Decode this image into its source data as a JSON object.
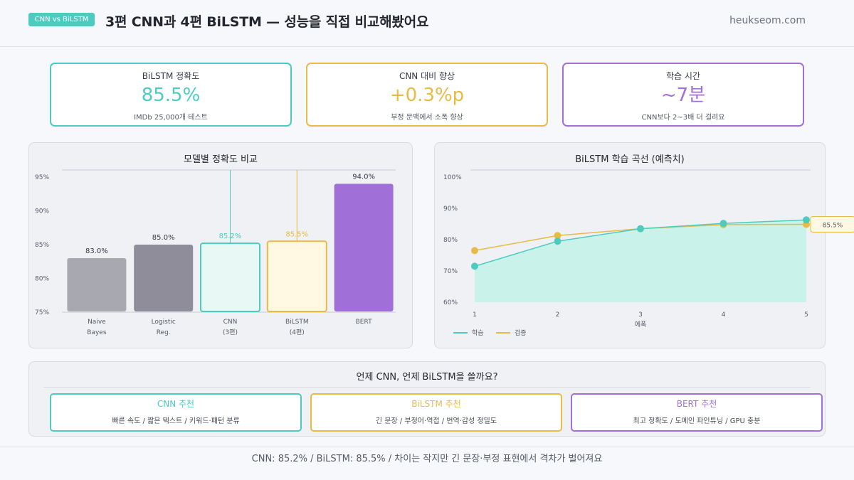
{
  "header": {
    "badge": "CNN vs BiLSTM",
    "title": "3편 CNN과 4편 BiLSTM — 성능을 직접 비교해봤어요",
    "site": "heukseom.com"
  },
  "kpis": [
    {
      "label": "BiLSTM 정확도",
      "value": "85.5%",
      "sub": "IMDb 25,000개 테스트"
    },
    {
      "label": "CNN 대비 향상",
      "value": "+0.3%p",
      "sub": "부정 문맥에서 소폭 향상"
    },
    {
      "label": "학습 시간",
      "value": "~7분",
      "sub": "CNN보다 2~3배 더 걸려요"
    }
  ],
  "colors": {
    "teal": "#4dcbbf",
    "gold": "#e6bb46",
    "purple": "#a070d8",
    "gray": "#a8a9b0",
    "darkgray": "#8e8d99"
  },
  "chart_data": [
    {
      "type": "bar",
      "title": "모델별 정확도 비교",
      "categories": [
        [
          "Naive",
          "Bayes"
        ],
        [
          "Logistic",
          "Reg."
        ],
        [
          "CNN",
          "(3편)"
        ],
        [
          "BiLSTM",
          "(4편)"
        ],
        [
          "BERT"
        ]
      ],
      "values": [
        83.0,
        85.0,
        85.2,
        85.5,
        94.0
      ],
      "value_labels": [
        "83.0%",
        "85.0%",
        "85.2%",
        "85.5%",
        "94.0%"
      ],
      "yticks": [
        "95%",
        "90%",
        "85%",
        "80%",
        "75%"
      ],
      "ylim": [
        75,
        95
      ],
      "grid": false
    },
    {
      "type": "line",
      "title": "BiLSTM 학습 곡선 (예측치)",
      "x": [
        1,
        2,
        3,
        4,
        5
      ],
      "xlabel": "에폭",
      "xticks": [
        "1",
        "2",
        "3",
        "4",
        "5"
      ],
      "yticks": [
        "100%",
        "90%",
        "80%",
        "70%",
        "60%"
      ],
      "ylim": [
        60,
        100
      ],
      "series": [
        {
          "name": "학습",
          "values": [
            71.5,
            79.5,
            83.5,
            85.2,
            86.3
          ]
        },
        {
          "name": "검증",
          "values": [
            76.5,
            81.3,
            83.5,
            84.8,
            84.9
          ]
        }
      ],
      "annotation": "85.5%",
      "legend": "bottom-left"
    }
  ],
  "recommend": {
    "title": "언제 CNN, 언제 BiLSTM을 쓸까요?",
    "items": [
      {
        "title": "CNN 추천",
        "desc": "빠른 속도  /  짧은 텍스트  /  키워드·패턴 분류"
      },
      {
        "title": "BiLSTM 추천",
        "desc": "긴 문장  /  부정어·역접  /  번역·감성 정밀도"
      },
      {
        "title": "BERT 추천",
        "desc": "최고 정확도  /  도메인 파인튜닝  /  GPU 충분"
      }
    ]
  },
  "footer": "CNN: 85.2%  /  BiLSTM: 85.5%  /  차이는 작지만 긴 문장·부정 표현에서 격차가 벌어져요"
}
